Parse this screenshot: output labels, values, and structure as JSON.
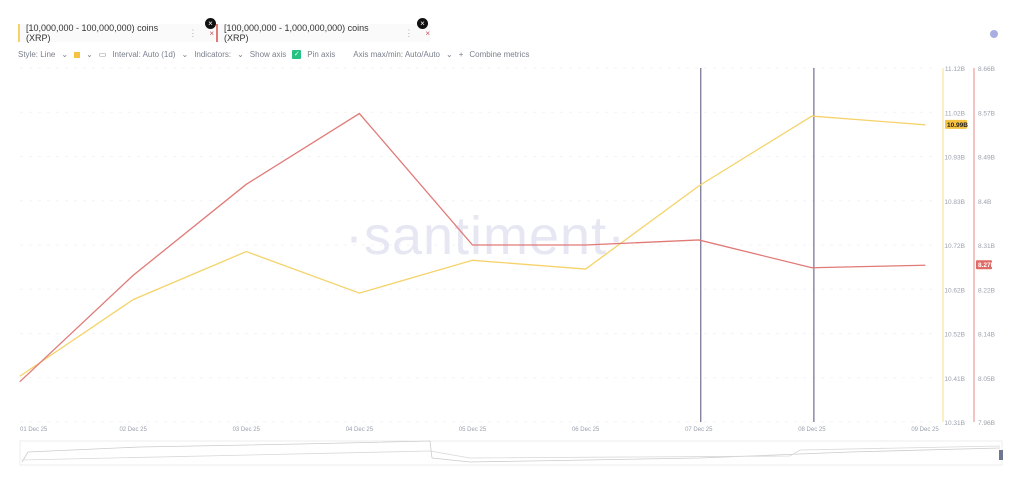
{
  "metrics": [
    {
      "label": "[10,000,000 - 100,000,000) coins (XRP)",
      "color": "#f5d36a"
    },
    {
      "label": "[100,000,000 - 1,000,000,000) coins (XRP)",
      "color": "#e07a77"
    }
  ],
  "toolbar": {
    "style": "Style: Line",
    "interval": "Interval: Auto (1d)",
    "indicators": "Indicators:",
    "show_axis": "Show axis",
    "pin_axis": "Pin axis",
    "axis_maxmin": "Axis max/min: Auto/Auto",
    "combine": "Combine metrics"
  },
  "watermark": "·santiment·",
  "chart_data": {
    "type": "line",
    "categories": [
      "01 Dec 25",
      "02 Dec 25",
      "03 Dec 25",
      "04 Dec 25",
      "05 Dec 25",
      "06 Dec 25",
      "07 Dec 25",
      "08 Dec 25",
      "09 Dec 25"
    ],
    "series": [
      {
        "name": "[10,000,000 - 100,000,000) coins (XRP)",
        "axis": "left",
        "color": "#f5d36a",
        "values": [
          10.415,
          10.59,
          10.7,
          10.605,
          10.68,
          10.66,
          10.85,
          11.01,
          10.99
        ],
        "last_label": "10.99B"
      },
      {
        "name": "[100,000,000 - 1,000,000,000) coins (XRP)",
        "axis": "right",
        "color": "#e07a77",
        "values": [
          8.04,
          8.25,
          8.43,
          8.57,
          8.31,
          8.31,
          8.32,
          8.265,
          8.27
        ],
        "last_label": "8.27B"
      }
    ],
    "left_axis": {
      "ylim": [
        10.31,
        11.12
      ],
      "ticks": [
        "11.12B",
        "11.02B",
        "10.93B",
        "10.83B",
        "10.72B",
        "10.62B",
        "10.52B",
        "10.41B",
        "10.31B"
      ]
    },
    "right_axis": {
      "ylim": [
        7.96,
        8.66
      ],
      "ticks": [
        "8.66B",
        "8.57B",
        "8.49B",
        "8.4B",
        "8.31B",
        "8.22B",
        "8.14B",
        "8.05B",
        "7.96B"
      ]
    },
    "vertical_markers": [
      "07 Dec 25",
      "08 Dec 25"
    ],
    "grid": true
  }
}
